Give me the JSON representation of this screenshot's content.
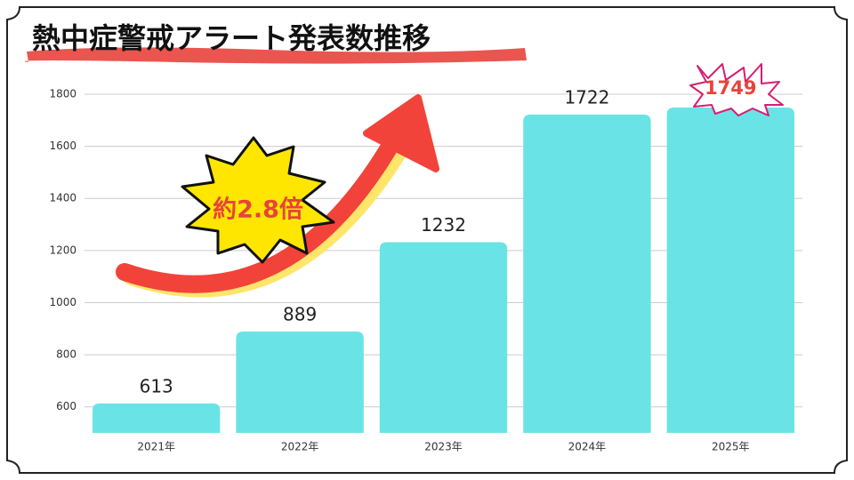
{
  "chart_data": {
    "type": "bar",
    "title": "熱中症警戒アラート発表数推移",
    "annotation": "約2.8倍",
    "categories": [
      "2021年",
      "2022年",
      "2023年",
      "2024年",
      "2025年"
    ],
    "values": [
      613,
      889,
      1232,
      1722,
      1749
    ],
    "color": "#6ae3e6",
    "ylim": [
      500,
      1800
    ],
    "yticks": [
      600,
      800,
      1000,
      1200,
      1400,
      1600,
      1800
    ],
    "grid": true
  }
}
